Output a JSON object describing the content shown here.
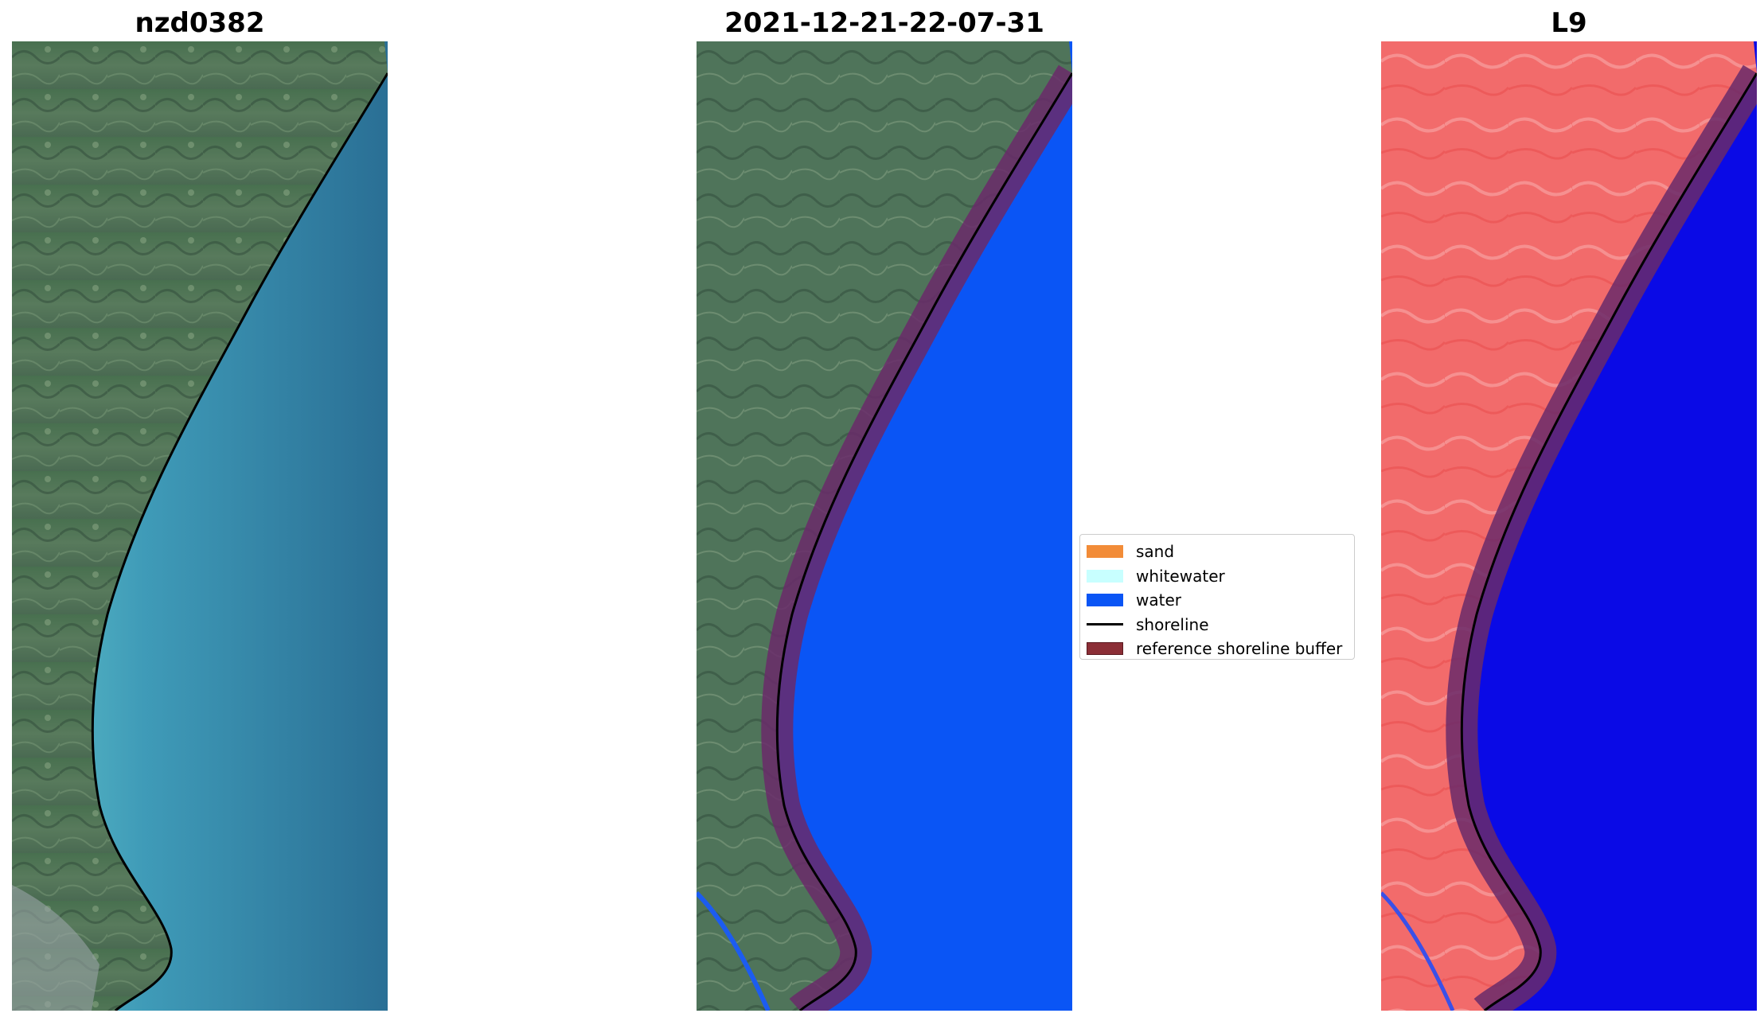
{
  "panels": [
    {
      "title": "nzd0382",
      "image": "true-color satellite image of coastline with detected shoreline"
    },
    {
      "title": "2021-12-21-22-07-31",
      "image": "classified image with water mask and reference shoreline buffer"
    },
    {
      "title": "L9",
      "image": "water index image with shoreline and buffer"
    }
  ],
  "legend": {
    "items": [
      {
        "label": "sand",
        "color": "#f28c38",
        "kind": "patch"
      },
      {
        "label": "whitewater",
        "color": "#c8ffff",
        "kind": "patch"
      },
      {
        "label": "water",
        "color": "#0a55f5",
        "kind": "patch"
      },
      {
        "label": "shoreline",
        "color": "#000000",
        "kind": "line"
      },
      {
        "label": "reference shoreline buffer",
        "color": "#8b2e36",
        "kind": "patch"
      }
    ]
  },
  "colors": {
    "land": "#3e6650",
    "ocean": "#2b7e9e",
    "water_class": "#0a55f5",
    "buffer": "#6a2a6a",
    "index_land": "#f26b6b",
    "index_water": "#0a0ae6"
  }
}
